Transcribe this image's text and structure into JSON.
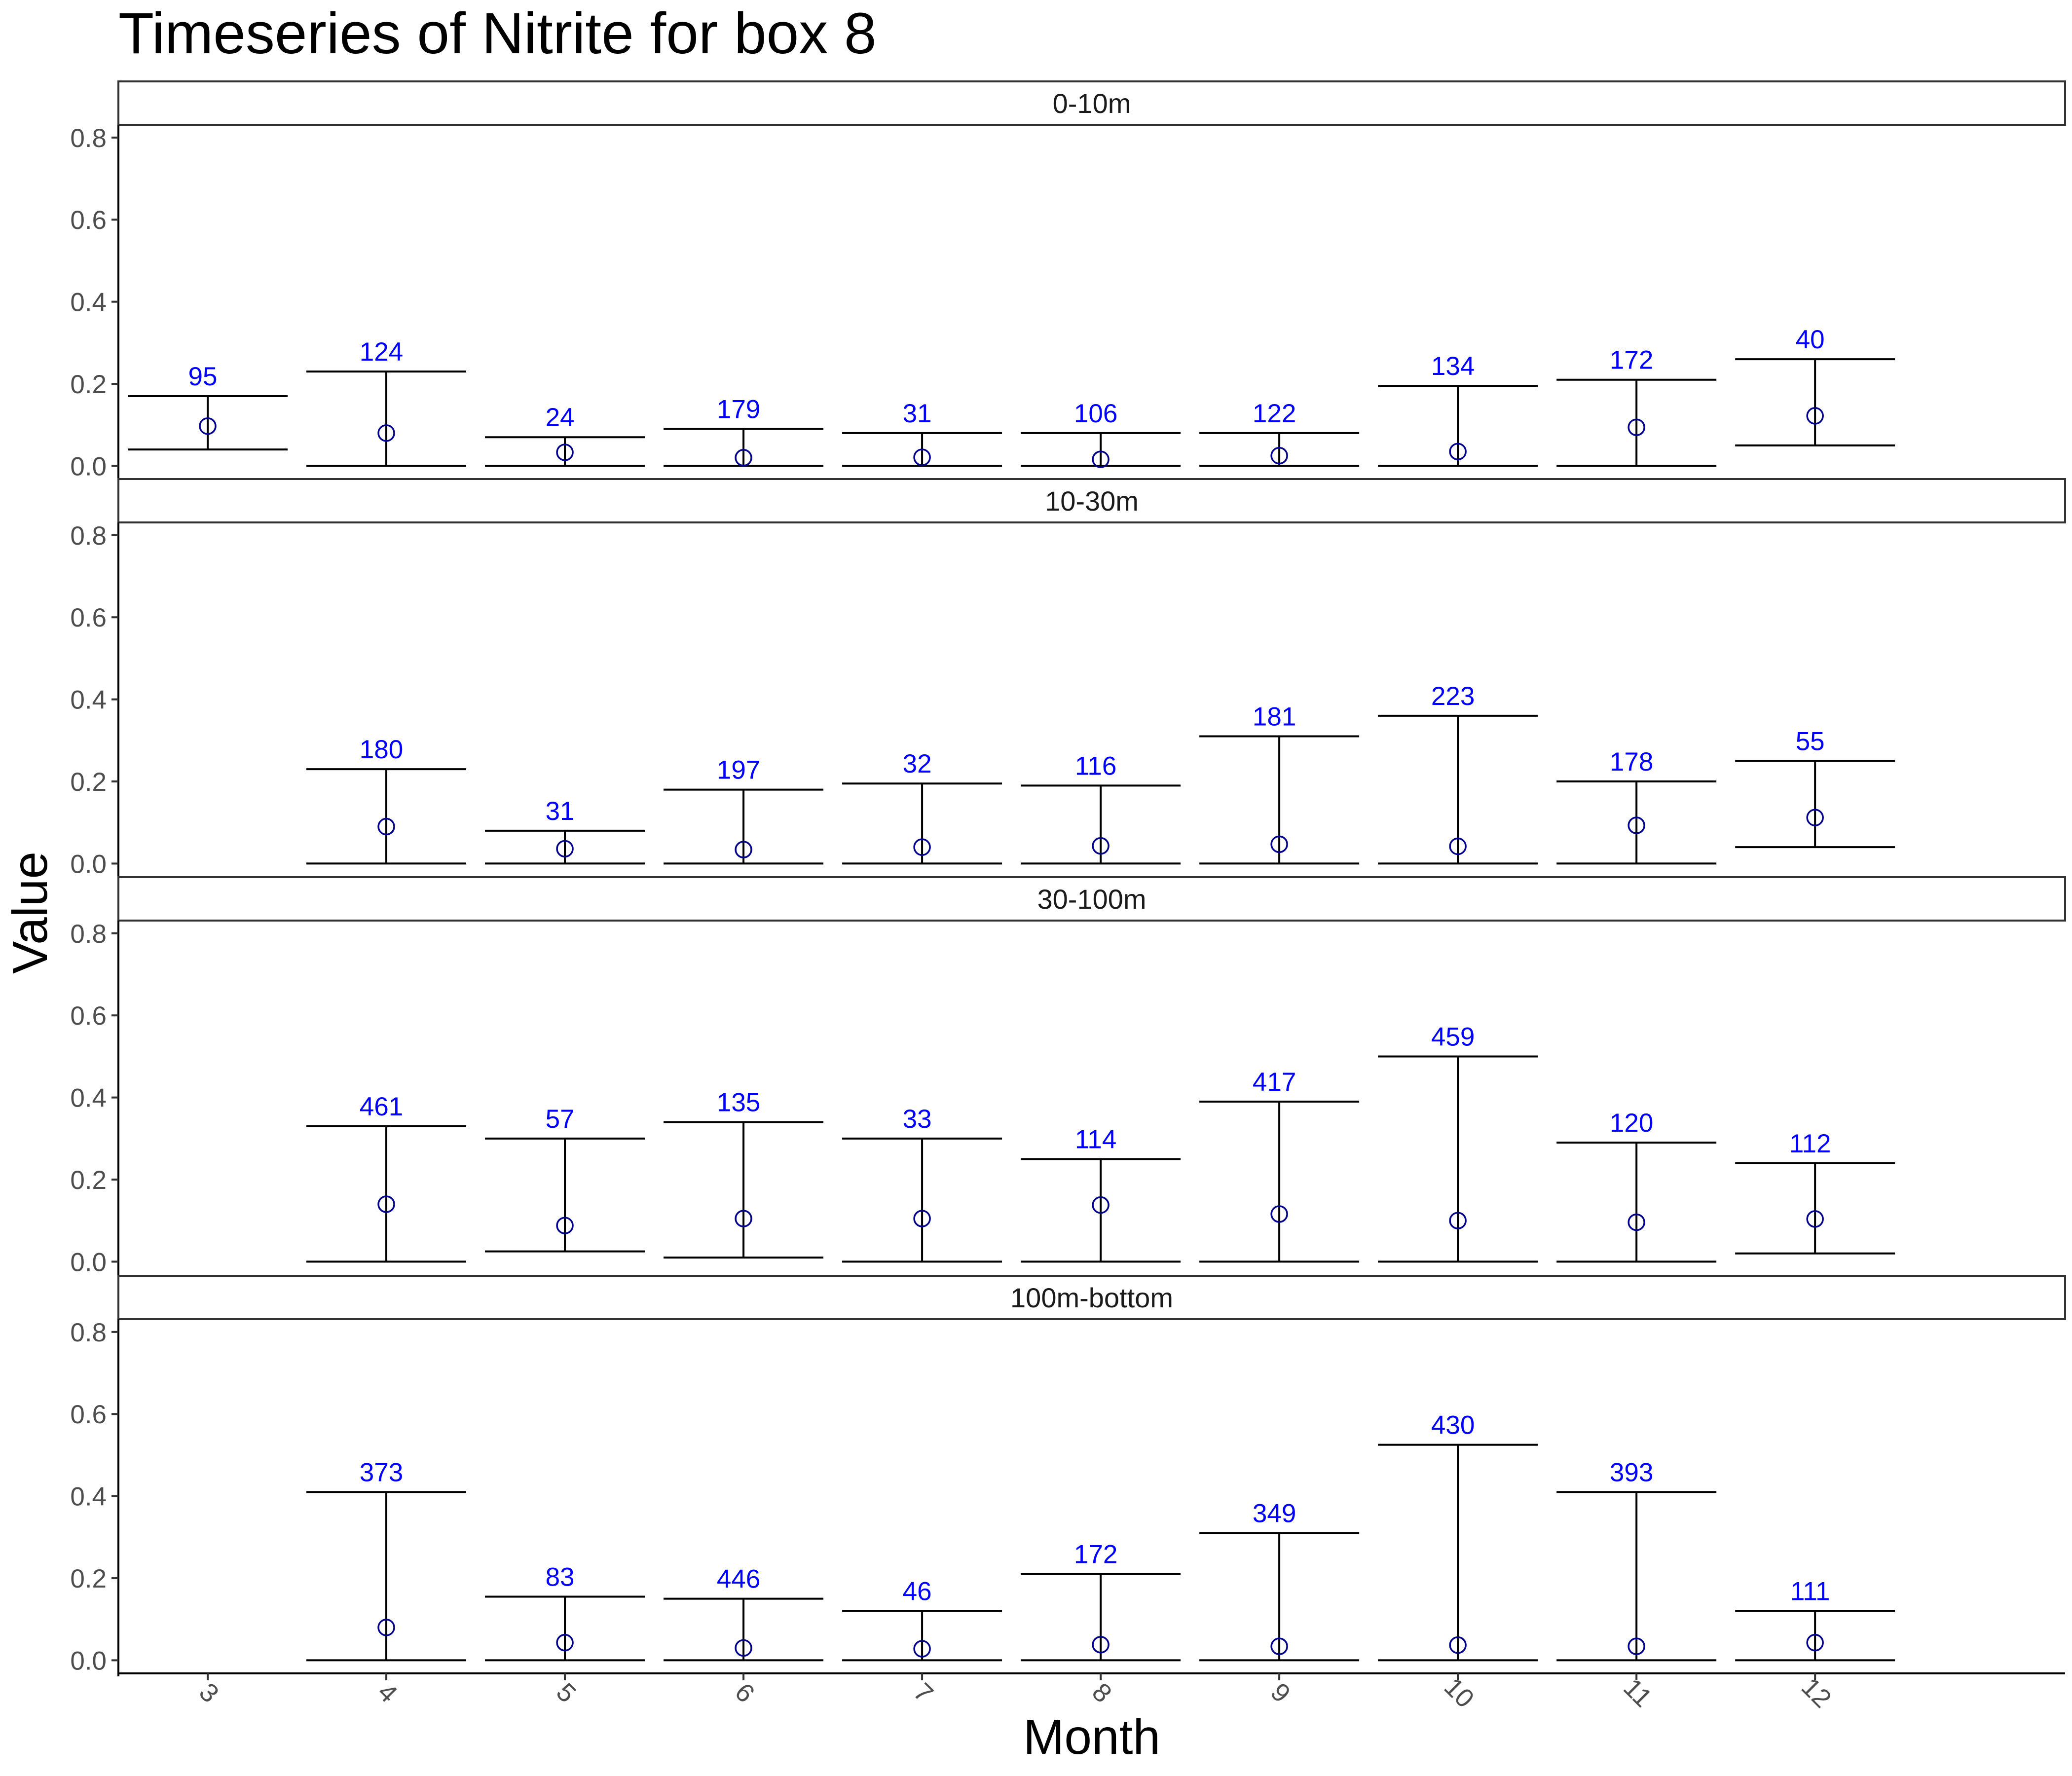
{
  "chart_data": {
    "type": "errorbar",
    "title": "Timeseries of  Nitrite  for box  8",
    "xlabel": "Month",
    "ylabel": "Value",
    "x": [
      3,
      4,
      5,
      6,
      7,
      8,
      9,
      10,
      11,
      12
    ],
    "ylim": [
      0,
      0.82
    ],
    "yticks": [
      "0.0",
      "0.2",
      "0.4",
      "0.6",
      "0.8"
    ],
    "count_label_color": "#0000ff",
    "point_color": "#00008b",
    "panels": [
      {
        "label": "0-10m",
        "points": [
          {
            "month": 3,
            "mean": 0.097,
            "low": 0.04,
            "high": 0.17,
            "n": "95"
          },
          {
            "month": 4,
            "mean": 0.08,
            "low": 0.0,
            "high": 0.23,
            "n": "124"
          },
          {
            "month": 5,
            "mean": 0.033,
            "low": 0.0,
            "high": 0.07,
            "n": "24"
          },
          {
            "month": 6,
            "mean": 0.02,
            "low": 0.0,
            "high": 0.09,
            "n": "179"
          },
          {
            "month": 7,
            "mean": 0.021,
            "low": 0.0,
            "high": 0.08,
            "n": "31"
          },
          {
            "month": 8,
            "mean": 0.016,
            "low": 0.0,
            "high": 0.08,
            "n": "106"
          },
          {
            "month": 9,
            "mean": 0.025,
            "low": 0.0,
            "high": 0.08,
            "n": "122"
          },
          {
            "month": 10,
            "mean": 0.035,
            "low": 0.0,
            "high": 0.195,
            "n": "134"
          },
          {
            "month": 11,
            "mean": 0.094,
            "low": 0.0,
            "high": 0.21,
            "n": "172"
          },
          {
            "month": 12,
            "mean": 0.122,
            "low": 0.05,
            "high": 0.26,
            "n": "40"
          }
        ]
      },
      {
        "label": "10-30m",
        "points": [
          {
            "month": 4,
            "mean": 0.09,
            "low": 0.0,
            "high": 0.23,
            "n": "180"
          },
          {
            "month": 5,
            "mean": 0.036,
            "low": 0.0,
            "high": 0.08,
            "n": "31"
          },
          {
            "month": 6,
            "mean": 0.034,
            "low": 0.0,
            "high": 0.18,
            "n": "197"
          },
          {
            "month": 7,
            "mean": 0.04,
            "low": 0.0,
            "high": 0.195,
            "n": "32"
          },
          {
            "month": 8,
            "mean": 0.043,
            "low": 0.0,
            "high": 0.19,
            "n": "116"
          },
          {
            "month": 9,
            "mean": 0.047,
            "low": 0.0,
            "high": 0.31,
            "n": "181"
          },
          {
            "month": 10,
            "mean": 0.042,
            "low": 0.0,
            "high": 0.36,
            "n": "223"
          },
          {
            "month": 11,
            "mean": 0.093,
            "low": 0.0,
            "high": 0.2,
            "n": "178"
          },
          {
            "month": 12,
            "mean": 0.112,
            "low": 0.04,
            "high": 0.25,
            "n": "55"
          }
        ]
      },
      {
        "label": "30-100m",
        "points": [
          {
            "month": 4,
            "mean": 0.14,
            "low": 0.0,
            "high": 0.33,
            "n": "461"
          },
          {
            "month": 5,
            "mean": 0.088,
            "low": 0.025,
            "high": 0.3,
            "n": "57"
          },
          {
            "month": 6,
            "mean": 0.105,
            "low": 0.01,
            "high": 0.34,
            "n": "135"
          },
          {
            "month": 7,
            "mean": 0.105,
            "low": 0.0,
            "high": 0.3,
            "n": "33"
          },
          {
            "month": 8,
            "mean": 0.138,
            "low": 0.0,
            "high": 0.25,
            "n": "114"
          },
          {
            "month": 9,
            "mean": 0.116,
            "low": 0.0,
            "high": 0.39,
            "n": "417"
          },
          {
            "month": 10,
            "mean": 0.1,
            "low": 0.0,
            "high": 0.5,
            "n": "459"
          },
          {
            "month": 11,
            "mean": 0.096,
            "low": 0.0,
            "high": 0.29,
            "n": "120"
          },
          {
            "month": 12,
            "mean": 0.104,
            "low": 0.02,
            "high": 0.24,
            "n": "112"
          }
        ]
      },
      {
        "label": "100m-bottom",
        "points": [
          {
            "month": 4,
            "mean": 0.08,
            "low": 0.0,
            "high": 0.41,
            "n": "373"
          },
          {
            "month": 5,
            "mean": 0.043,
            "low": 0.0,
            "high": 0.155,
            "n": "83"
          },
          {
            "month": 6,
            "mean": 0.03,
            "low": 0.0,
            "high": 0.15,
            "n": "446"
          },
          {
            "month": 7,
            "mean": 0.028,
            "low": 0.0,
            "high": 0.12,
            "n": "46"
          },
          {
            "month": 8,
            "mean": 0.038,
            "low": 0.0,
            "high": 0.21,
            "n": "172"
          },
          {
            "month": 9,
            "mean": 0.034,
            "low": 0.0,
            "high": 0.31,
            "n": "349"
          },
          {
            "month": 10,
            "mean": 0.037,
            "low": 0.0,
            "high": 0.525,
            "n": "430"
          },
          {
            "month": 11,
            "mean": 0.034,
            "low": 0.0,
            "high": 0.41,
            "n": "393"
          },
          {
            "month": 12,
            "mean": 0.043,
            "low": 0.0,
            "high": 0.12,
            "n": "111"
          }
        ]
      }
    ]
  }
}
